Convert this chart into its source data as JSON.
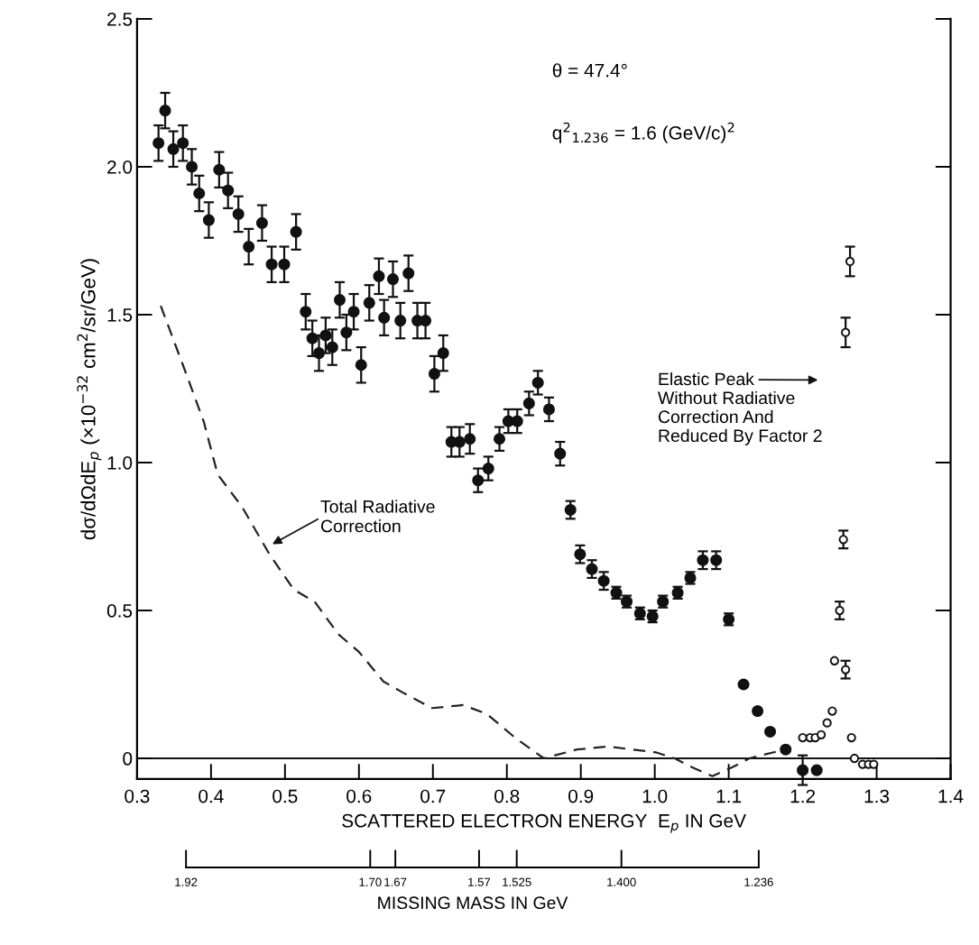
{
  "chart_data": {
    "type": "scatter",
    "xlabel": "SCATTERED ELECTRON ENERGY  E$_{p}$ IN GeV",
    "ylabel": "dσ/dΩdE$_{p}$ (×10$^{−32}$ cm$^{2}$/sr/GeV)",
    "x2label": "MISSING MASS IN GeV",
    "xlim": [
      0.3,
      1.4
    ],
    "xticks": [
      0.3,
      0.4,
      0.5,
      0.6,
      0.7,
      0.8,
      0.9,
      {
        "value": 1.0,
        "label": "1.0"
      },
      1.1,
      1.2,
      1.3,
      1.4
    ],
    "ylim": [
      -0.07,
      2.5
    ],
    "ref_lines": [
      {
        "axis": "y",
        "value": 0,
        "color": "#111111",
        "line_style": "solid"
      }
    ],
    "yticks": [
      0,
      0.5,
      {
        "value": 1.0,
        "label": "1.0"
      },
      1.5,
      {
        "value": 2.0,
        "label": "2.0"
      },
      2.5
    ],
    "x2lim": [
      1.92,
      1.236
    ],
    "x2ticks": [
      1.92,
      {
        "value": 1.7,
        "label": "1.70"
      },
      1.67,
      1.57,
      1.525,
      {
        "value": 1.4,
        "label": "1.400"
      },
      1.236
    ],
    "grid": false,
    "legend": false,
    "series": [
      {
        "marker": "circle",
        "color": "#111111",
        "x": [
          0.329,
          0.338,
          0.349,
          0.362,
          0.374,
          0.384,
          0.397,
          0.411,
          0.423,
          0.437,
          0.451,
          0.469,
          0.482,
          0.499,
          0.515,
          0.528,
          0.537,
          0.546,
          0.555,
          0.564,
          0.574,
          0.583,
          0.593,
          0.603,
          0.614,
          0.627,
          0.634,
          0.646,
          0.656,
          0.667,
          0.679,
          0.69,
          0.702,
          0.714,
          0.725,
          0.736,
          0.75,
          0.761,
          0.775,
          0.79,
          0.802,
          0.814,
          0.83,
          0.842,
          0.857,
          0.872,
          0.886,
          0.899,
          0.915,
          0.931,
          0.948,
          0.962,
          0.98,
          0.997,
          1.011,
          1.031,
          1.048,
          1.065,
          1.083,
          1.1,
          1.12,
          1.139,
          1.156,
          1.177,
          1.2,
          1.219
        ],
        "values": [
          2.08,
          2.19,
          2.06,
          2.08,
          2.0,
          1.91,
          1.82,
          1.99,
          1.92,
          1.84,
          1.73,
          1.81,
          1.67,
          1.67,
          1.78,
          1.51,
          1.42,
          1.37,
          1.43,
          1.39,
          1.55,
          1.44,
          1.51,
          1.33,
          1.54,
          1.63,
          1.49,
          1.62,
          1.48,
          1.64,
          1.48,
          1.48,
          1.3,
          1.37,
          1.07,
          1.07,
          1.08,
          0.94,
          0.98,
          1.08,
          1.14,
          1.14,
          1.2,
          1.27,
          1.18,
          1.03,
          0.84,
          0.69,
          0.64,
          0.6,
          0.56,
          0.53,
          0.49,
          0.48,
          0.53,
          0.56,
          0.61,
          0.67,
          0.67,
          0.47,
          0.25,
          0.16,
          0.09,
          0.03,
          -0.04,
          -0.04
        ],
        "errors": [
          0.06,
          0.06,
          0.06,
          0.06,
          0.06,
          0.06,
          0.06,
          0.06,
          0.06,
          0.06,
          0.06,
          0.06,
          0.06,
          0.06,
          0.06,
          0.06,
          0.06,
          0.06,
          0.06,
          0.06,
          0.06,
          0.06,
          0.06,
          0.06,
          0.06,
          0.06,
          0.06,
          0.06,
          0.06,
          0.06,
          0.06,
          0.06,
          0.06,
          0.06,
          0.05,
          0.05,
          0.05,
          0.04,
          0.04,
          0.04,
          0.04,
          0.04,
          0.04,
          0.04,
          0.04,
          0.04,
          0.03,
          0.03,
          0.03,
          0.03,
          0.02,
          0.02,
          0.02,
          0.02,
          0.02,
          0.02,
          0.02,
          0.03,
          0.03,
          0.02,
          null,
          null,
          null,
          null,
          0.05,
          null
        ]
      },
      {
        "marker": "open circle",
        "color": "#111111",
        "x": [
          1.2,
          1.21,
          1.217,
          1.225,
          1.233,
          1.24,
          1.243,
          1.258,
          1.25,
          1.255,
          1.258,
          1.264,
          1.266,
          1.27,
          1.281,
          1.289,
          1.296
        ],
        "values": [
          0.07,
          0.07,
          0.07,
          0.08,
          0.12,
          0.16,
          0.33,
          0.3,
          0.5,
          0.74,
          1.44,
          1.68,
          0.07,
          0.0,
          -0.02,
          -0.02,
          -0.02
        ],
        "errors": [
          null,
          null,
          null,
          null,
          null,
          null,
          null,
          0.03,
          0.03,
          0.03,
          0.05,
          0.05,
          null,
          null,
          null,
          null,
          null
        ]
      },
      {
        "type": "line",
        "line_style": "dashed",
        "marker": "none",
        "color": "#222222",
        "x": [
          0.332,
          0.362,
          0.39,
          0.409,
          0.442,
          0.479,
          0.512,
          0.54,
          0.572,
          0.6,
          0.633,
          0.661,
          0.699,
          0.741,
          0.773,
          0.811,
          0.85,
          0.895,
          0.937,
          1.002,
          1.027,
          1.05,
          1.078,
          1.105,
          1.128,
          1.176
        ],
        "values": [
          1.53,
          1.33,
          1.14,
          0.96,
          0.85,
          0.69,
          0.57,
          0.53,
          0.42,
          0.36,
          0.26,
          0.22,
          0.17,
          0.18,
          0.15,
          0.07,
          0.0,
          0.03,
          0.04,
          0.02,
          0.0,
          -0.03,
          -0.06,
          -0.03,
          0.0,
          0.03
        ]
      }
    ],
    "annotations": [
      "θ = 47.4°",
      "q$^{2}$$_{1.236}$ = 1.6 (GeV/c)$^{2}$",
      "Elastic Peak\nWithout Radiative\nCorrection And\nReduced By Factor 2",
      {
        "text": "Total Radiative\nCorrection",
        "x": 0.48,
        "y": 0.72
      }
    ]
  }
}
